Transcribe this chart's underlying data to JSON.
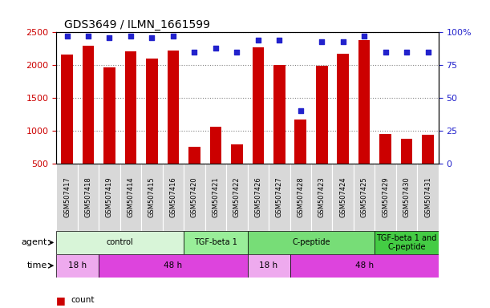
{
  "title": "GDS3649 / ILMN_1661599",
  "samples": [
    "GSM507417",
    "GSM507418",
    "GSM507419",
    "GSM507414",
    "GSM507415",
    "GSM507416",
    "GSM507420",
    "GSM507421",
    "GSM507422",
    "GSM507426",
    "GSM507427",
    "GSM507428",
    "GSM507423",
    "GSM507424",
    "GSM507425",
    "GSM507429",
    "GSM507430",
    "GSM507431"
  ],
  "counts": [
    2160,
    2290,
    1960,
    2210,
    2105,
    2220,
    750,
    1060,
    790,
    2265,
    2000,
    1170,
    1990,
    2175,
    2385,
    950,
    870,
    940
  ],
  "percentiles": [
    97,
    97,
    96,
    97,
    96,
    97,
    85,
    88,
    85,
    94,
    94,
    40,
    93,
    93,
    97,
    85,
    85,
    85
  ],
  "bar_color": "#cc0000",
  "dot_color": "#2222cc",
  "ylim_left": [
    500,
    2500
  ],
  "ylim_right": [
    0,
    100
  ],
  "yticks_left": [
    500,
    1000,
    1500,
    2000,
    2500
  ],
  "yticks_right": [
    0,
    25,
    50,
    75,
    100
  ],
  "agent_groups": [
    {
      "label": "control",
      "start": 0,
      "end": 6,
      "color": "#d8f5d8"
    },
    {
      "label": "TGF-beta 1",
      "start": 6,
      "end": 9,
      "color": "#99ee99"
    },
    {
      "label": "C-peptide",
      "start": 9,
      "end": 15,
      "color": "#77dd77"
    },
    {
      "label": "TGF-beta 1 and\nC-peptide",
      "start": 15,
      "end": 18,
      "color": "#44cc44"
    }
  ],
  "time_groups": [
    {
      "label": "18 h",
      "start": 0,
      "end": 2,
      "color": "#eeaaee"
    },
    {
      "label": "48 h",
      "start": 2,
      "end": 9,
      "color": "#dd44dd"
    },
    {
      "label": "18 h",
      "start": 9,
      "end": 11,
      "color": "#eeaaee"
    },
    {
      "label": "48 h",
      "start": 11,
      "end": 18,
      "color": "#dd44dd"
    }
  ],
  "legend_count_color": "#cc0000",
  "legend_pct_color": "#2222cc",
  "left_tick_color": "#cc0000",
  "right_tick_color": "#2222cc",
  "background_color": "#ffffff",
  "sample_cell_color": "#d8d8d8",
  "agent_label": "agent",
  "time_label": "time"
}
